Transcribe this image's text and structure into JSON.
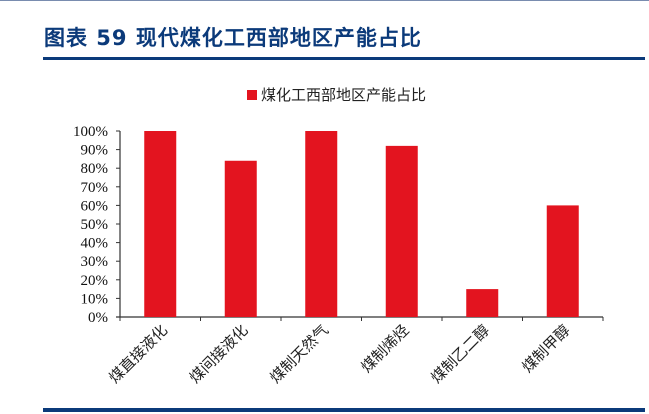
{
  "header": {
    "title": "图表 59  现代煤化工西部地区产能占比"
  },
  "colors": {
    "bar": "#e3141f",
    "accent": "#0b3a7a",
    "axis": "#333333"
  },
  "chart_data": {
    "type": "bar",
    "title": "图表 59 现代煤化工西部地区产能占比",
    "categories": [
      "煤直接液化",
      "煤间接液化",
      "煤制天然气",
      "煤制烯烃",
      "煤制乙二醇",
      "煤制甲醇"
    ],
    "series": [
      {
        "name": "煤化工西部地区产能占比",
        "values": [
          100,
          84,
          100,
          92,
          15,
          60
        ]
      }
    ],
    "xlabel": "",
    "ylabel": "",
    "ylim": [
      0,
      100
    ],
    "yticks": [
      "0%",
      "10%",
      "20%",
      "30%",
      "40%",
      "50%",
      "60%",
      "70%",
      "80%",
      "90%",
      "100%"
    ],
    "legend_position": "top",
    "grid": false
  }
}
